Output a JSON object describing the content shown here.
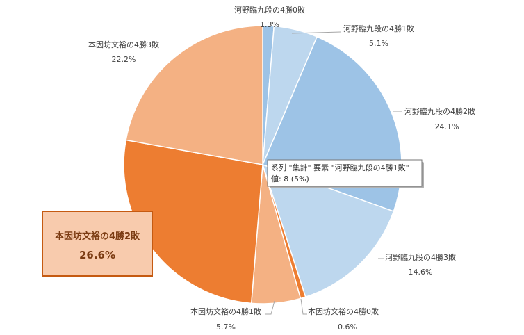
{
  "chart_data": {
    "type": "pie",
    "title": "",
    "slices": [
      {
        "label": "河野臨九段の4勝0敗",
        "value": 1.3,
        "pct_label": "1.3%",
        "color": "#9dc3e6"
      },
      {
        "label": "河野臨九段の4勝1敗",
        "value": 5.1,
        "pct_label": "5.1%",
        "color": "#bdd7ee"
      },
      {
        "label": "河野臨九段の4勝2敗",
        "value": 24.1,
        "pct_label": "24.1%",
        "color": "#9dc3e6"
      },
      {
        "label": "河野臨九段の4勝3敗",
        "value": 14.6,
        "pct_label": "14.6%",
        "color": "#bdd7ee"
      },
      {
        "label": "本因坊文裕の4勝0敗",
        "value": 0.6,
        "pct_label": "0.6%",
        "color": "#ed7d31"
      },
      {
        "label": "本因坊文裕の4勝1敗",
        "value": 5.7,
        "pct_label": "5.7%",
        "color": "#f4b183"
      },
      {
        "label": "本因坊文裕の4勝2敗",
        "value": 26.6,
        "pct_label": "26.6%",
        "color": "#ed7d31"
      },
      {
        "label": "本因坊文裕の4勝3敗",
        "value": 22.2,
        "pct_label": "22.2%",
        "color": "#f4b183"
      }
    ],
    "highlighted_slice": "本因坊文裕の4勝2敗",
    "tooltip": {
      "line1": "系列 \"集計\" 要素 \"河野臨九段の4勝1敗\"",
      "line2": "値: 8 (5%)"
    }
  }
}
